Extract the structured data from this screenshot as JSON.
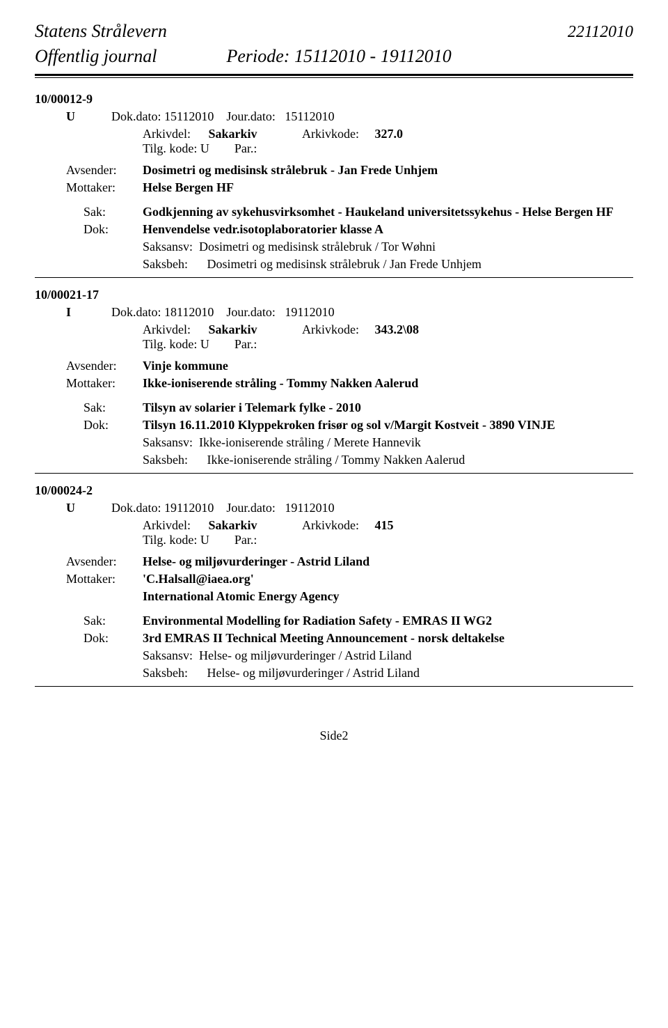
{
  "header": {
    "org_name": "Statens Strålevern",
    "top_date": "22112010",
    "journal_label": "Offentlig journal",
    "period_label": "Periode: 15112010 - 19112010"
  },
  "entries": [
    {
      "id": "10/00012-9",
      "type": "U",
      "dok_dato_label": "Dok.dato:",
      "dok_dato": "15112010",
      "jour_dato_label": "Jour.dato:",
      "jour_dato": "15112010",
      "arkivdel_label": "Arkivdel:",
      "arkivdel": "Sakarkiv",
      "arkivkode_label": "Arkivkode:",
      "arkivkode": "327.0",
      "tilg_label": "Tilg. kode:",
      "tilg_value": "U",
      "par_label": "Par.:",
      "avsender_label": "Avsender:",
      "avsender": "Dosimetri og medisinsk strålebruk - Jan Frede Unhjem",
      "mottaker_label": "Mottaker:",
      "mottaker": "Helse Bergen HF",
      "mottaker_extra": [],
      "sak_label": "Sak:",
      "sak": "Godkjenning av sykehusvirksomhet - Haukeland universitetssykehus - Helse Bergen HF",
      "dok_label": "Dok:",
      "dok": "Henvendelse vedr.isotoplaboratorier klasse A",
      "saksansv_label": "Saksansv:",
      "saksansv": "Dosimetri og medisinsk strålebruk / Tor Wøhni",
      "saksbeh_label": "Saksbeh:",
      "saksbeh": "Dosimetri og medisinsk strålebruk / Jan Frede Unhjem"
    },
    {
      "id": "10/00021-17",
      "type": "I",
      "dok_dato_label": "Dok.dato:",
      "dok_dato": "18112010",
      "jour_dato_label": "Jour.dato:",
      "jour_dato": "19112010",
      "arkivdel_label": "Arkivdel:",
      "arkivdel": "Sakarkiv",
      "arkivkode_label": "Arkivkode:",
      "arkivkode": "343.2\\08",
      "tilg_label": "Tilg. kode:",
      "tilg_value": "U",
      "par_label": "Par.:",
      "avsender_label": "Avsender:",
      "avsender": "Vinje kommune",
      "mottaker_label": "Mottaker:",
      "mottaker": "Ikke-ioniserende stråling - Tommy Nakken Aalerud",
      "mottaker_extra": [],
      "sak_label": "Sak:",
      "sak": "Tilsyn av solarier i Telemark fylke - 2010",
      "dok_label": "Dok:",
      "dok": "Tilsyn 16.11.2010 Klyppekroken frisør og sol v/Margit Kostveit - 3890 VINJE",
      "saksansv_label": "Saksansv:",
      "saksansv": "Ikke-ioniserende stråling / Merete Hannevik",
      "saksbeh_label": "Saksbeh:",
      "saksbeh": "Ikke-ioniserende stråling / Tommy Nakken Aalerud"
    },
    {
      "id": "10/00024-2",
      "type": "U",
      "dok_dato_label": "Dok.dato:",
      "dok_dato": "19112010",
      "jour_dato_label": "Jour.dato:",
      "jour_dato": "19112010",
      "arkivdel_label": "Arkivdel:",
      "arkivdel": "Sakarkiv",
      "arkivkode_label": "Arkivkode:",
      "arkivkode": "415",
      "tilg_label": "Tilg. kode:",
      "tilg_value": "U",
      "par_label": "Par.:",
      "avsender_label": "Avsender:",
      "avsender": "Helse- og miljøvurderinger - Astrid Liland",
      "mottaker_label": "Mottaker:",
      "mottaker": "'C.Halsall@iaea.org'",
      "mottaker_extra": [
        "International Atomic Energy Agency"
      ],
      "sak_label": "Sak:",
      "sak": "Environmental Modelling for Radiation Safety - EMRAS II WG2",
      "dok_label": "Dok:",
      "dok": "3rd EMRAS II Technical Meeting Announcement - norsk deltakelse",
      "saksansv_label": "Saksansv:",
      "saksansv": "Helse- og miljøvurderinger / Astrid Liland",
      "saksbeh_label": "Saksbeh:",
      "saksbeh": "Helse- og miljøvurderinger / Astrid Liland"
    }
  ],
  "page_number": "Side2"
}
